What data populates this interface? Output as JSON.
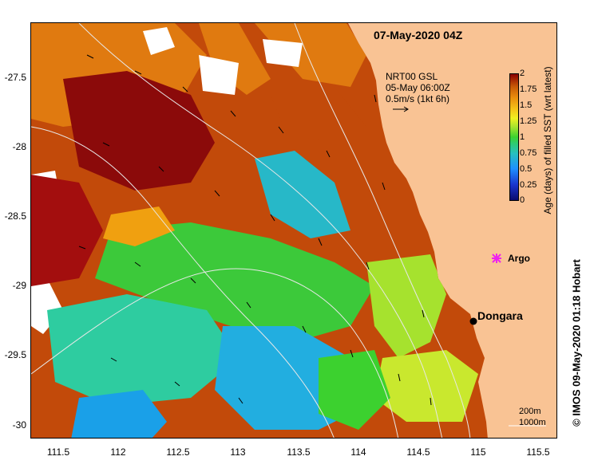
{
  "title": "07-May-2020 04Z",
  "current_info": {
    "source": "NRT00 GSL",
    "time": "05-May 06:00Z",
    "scale": "0.5m/s (1kt 6h)"
  },
  "colorbar": {
    "title": "Age (days) of filled SST (wrt latest)",
    "ticks": [
      "2",
      "1.75",
      "1.5",
      "1.25",
      "1",
      "0.75",
      "0.5",
      "0.25",
      "0"
    ]
  },
  "axes": {
    "lat_ticks": [
      "-27.5",
      "-28",
      "-28.5",
      "-29",
      "-29.5",
      "-30"
    ],
    "lon_ticks": [
      "111.5",
      "112",
      "112.5",
      "113",
      "113.5",
      "114",
      "114.5",
      "115",
      "115.5"
    ]
  },
  "places": {
    "argo_label": "Argo",
    "dongara_label": "Dongara"
  },
  "depth_legend": {
    "line1": "200m",
    "line2": "1000m"
  },
  "credit": "© IMOS 09-May-2020 01:18 Hobart",
  "colors": {
    "land": "#f9c394",
    "argo_marker": "#ee22ee",
    "contour": "#e8e8e8"
  },
  "icons": {
    "argo": "star-icon",
    "town": "dot-icon"
  }
}
